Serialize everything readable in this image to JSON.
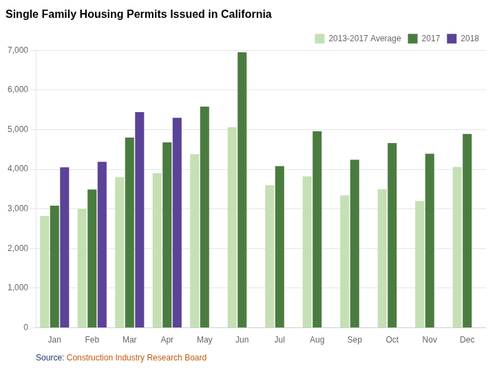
{
  "chart_data": {
    "type": "bar",
    "title": "Single Family Housing Permits Issued in California",
    "categories": [
      "Jan",
      "Feb",
      "Mar",
      "Apr",
      "May",
      "Jun",
      "Jul",
      "Aug",
      "Sep",
      "Oct",
      "Nov",
      "Dec"
    ],
    "series": [
      {
        "name": "2013-2017 Average",
        "color": "#c5e0b4",
        "values": [
          2820,
          3000,
          3800,
          3900,
          4380,
          5060,
          3600,
          3820,
          3340,
          3500,
          3200,
          4060
        ]
      },
      {
        "name": "2017",
        "color": "#4a7c3f",
        "values": [
          3080,
          3490,
          4800,
          4680,
          5580,
          6950,
          4080,
          4960,
          4240,
          4660,
          4390,
          4890
        ]
      },
      {
        "name": "2018",
        "color": "#5b4397",
        "values": [
          4050,
          4190,
          5440,
          5300,
          null,
          null,
          null,
          null,
          null,
          null,
          null,
          null
        ]
      }
    ],
    "ylim": [
      0,
      7000
    ],
    "yticks": [
      0,
      {
        "value": 1000,
        "label": "1,000"
      },
      {
        "value": 2000,
        "label": "2,000"
      },
      {
        "value": 3000,
        "label": "3,000"
      },
      {
        "value": 4000,
        "label": "4,000"
      },
      {
        "value": 5000,
        "label": "5,000"
      },
      {
        "value": 6000,
        "label": "6,000"
      },
      {
        "value": 7000,
        "label": "7,000"
      }
    ],
    "grid": true,
    "legend": "upper right",
    "annotations": [
      {
        "text": "Source: ",
        "color": "#1f3864"
      },
      {
        "text": "Construction Industry Research Board",
        "color": "#c55a11"
      }
    ]
  }
}
